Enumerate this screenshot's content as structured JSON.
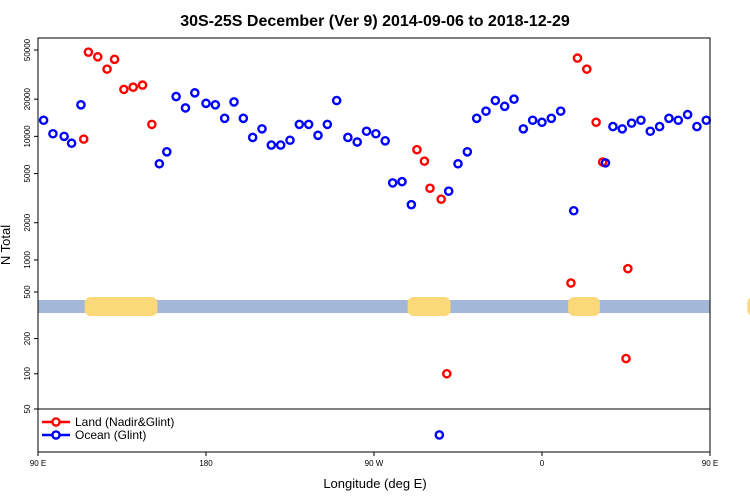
{
  "chart_data": {
    "type": "scatter",
    "title": "30S-25S December (Ver 9)   2014-09-06 to 2018-12-29",
    "xlabel": "Longitude (deg E)",
    "ylabel": "N Total",
    "x_axis": {
      "range_deg": [
        90,
        450
      ],
      "ticks": [
        {
          "value": 90,
          "label": "90 E"
        },
        {
          "value": 180,
          "label": "180"
        },
        {
          "value": 270,
          "label": "90 W"
        },
        {
          "value": 360,
          "label": "0"
        },
        {
          "value": 450,
          "label": "90 E"
        },
        {
          "value": 540,
          "label": "180"
        }
      ]
    },
    "y_axis": {
      "scale": "log",
      "ticks": [
        50,
        100,
        200,
        500,
        1000,
        2000,
        5000,
        10000,
        20000,
        50000
      ]
    },
    "land_mask": {
      "land_segments_deg": [
        [
          115,
          154
        ],
        [
          288,
          311
        ],
        [
          374,
          391
        ],
        [
          470,
          508
        ]
      ],
      "ocean_color": "#a3b8d8",
      "land_color": "#fbd97a"
    },
    "series": [
      {
        "name": "Land (Nadir&Glint)",
        "color": "#ff0000",
        "points": [
          [
            114.5,
            9500
          ],
          [
            117,
            48000
          ],
          [
            122,
            44000
          ],
          [
            127,
            35000
          ],
          [
            131,
            42000
          ],
          [
            136,
            24000
          ],
          [
            141,
            25000
          ],
          [
            146,
            26000
          ],
          [
            151,
            12500
          ],
          [
            293,
            7800
          ],
          [
            297,
            6300
          ],
          [
            300,
            3800
          ],
          [
            306,
            3100
          ],
          [
            309,
            100
          ],
          [
            375.5,
            650
          ],
          [
            379,
            43000
          ],
          [
            384,
            35000
          ],
          [
            389,
            13000
          ],
          [
            392.5,
            6200
          ],
          [
            406,
            850
          ],
          [
            405,
            135
          ],
          [
            468,
            9500
          ],
          [
            472,
            48000
          ],
          [
            477,
            44000
          ],
          [
            481,
            35000
          ],
          [
            486,
            42000
          ],
          [
            491,
            24000
          ],
          [
            496,
            25000
          ],
          [
            501,
            26000
          ],
          [
            506,
            12500
          ]
        ]
      },
      {
        "name": "Ocean (Glint)",
        "color": "#0000ff",
        "points": [
          [
            93,
            13500
          ],
          [
            98,
            10500
          ],
          [
            104,
            10000
          ],
          [
            108,
            8800
          ],
          [
            113,
            18000
          ],
          [
            155,
            6000
          ],
          [
            159,
            7500
          ],
          [
            164,
            21000
          ],
          [
            169,
            17000
          ],
          [
            174,
            22500
          ],
          [
            180,
            18500
          ],
          [
            185,
            18000
          ],
          [
            190,
            14000
          ],
          [
            195,
            19000
          ],
          [
            200,
            14000
          ],
          [
            205,
            9800
          ],
          [
            210,
            11500
          ],
          [
            215,
            8500
          ],
          [
            220,
            8500
          ],
          [
            225,
            9300
          ],
          [
            230,
            12500
          ],
          [
            235,
            12500
          ],
          [
            240,
            10200
          ],
          [
            245,
            12500
          ],
          [
            250,
            19500
          ],
          [
            256,
            9800
          ],
          [
            261,
            9000
          ],
          [
            266,
            11000
          ],
          [
            271,
            10500
          ],
          [
            276,
            9200
          ],
          [
            280,
            4200
          ],
          [
            285,
            4300
          ],
          [
            290,
            2800
          ],
          [
            305,
            30
          ],
          [
            310,
            3600
          ],
          [
            315,
            6000
          ],
          [
            320,
            7500
          ],
          [
            325,
            14000
          ],
          [
            330,
            16000
          ],
          [
            335,
            19500
          ],
          [
            340,
            17500
          ],
          [
            345,
            20000
          ],
          [
            350,
            11500
          ],
          [
            355,
            13500
          ],
          [
            360,
            13000
          ],
          [
            365,
            14000
          ],
          [
            370,
            16000
          ],
          [
            377,
            2500
          ],
          [
            394,
            6100
          ],
          [
            398,
            12000
          ],
          [
            403,
            11500
          ],
          [
            408,
            12800
          ],
          [
            413,
            13500
          ],
          [
            418,
            11000
          ],
          [
            423,
            12000
          ],
          [
            428,
            14000
          ],
          [
            433,
            13500
          ],
          [
            438,
            15000
          ],
          [
            443,
            12000
          ],
          [
            448,
            13500
          ],
          [
            453,
            13500
          ],
          [
            458,
            10500
          ],
          [
            463,
            10000
          ],
          [
            467,
            8800
          ],
          [
            471,
            18000
          ],
          [
            500,
            6000
          ],
          [
            504,
            7500
          ],
          [
            508,
            21000
          ],
          [
            513,
            17000
          ],
          [
            518,
            22500
          ],
          [
            523,
            18500
          ]
        ]
      }
    ]
  }
}
